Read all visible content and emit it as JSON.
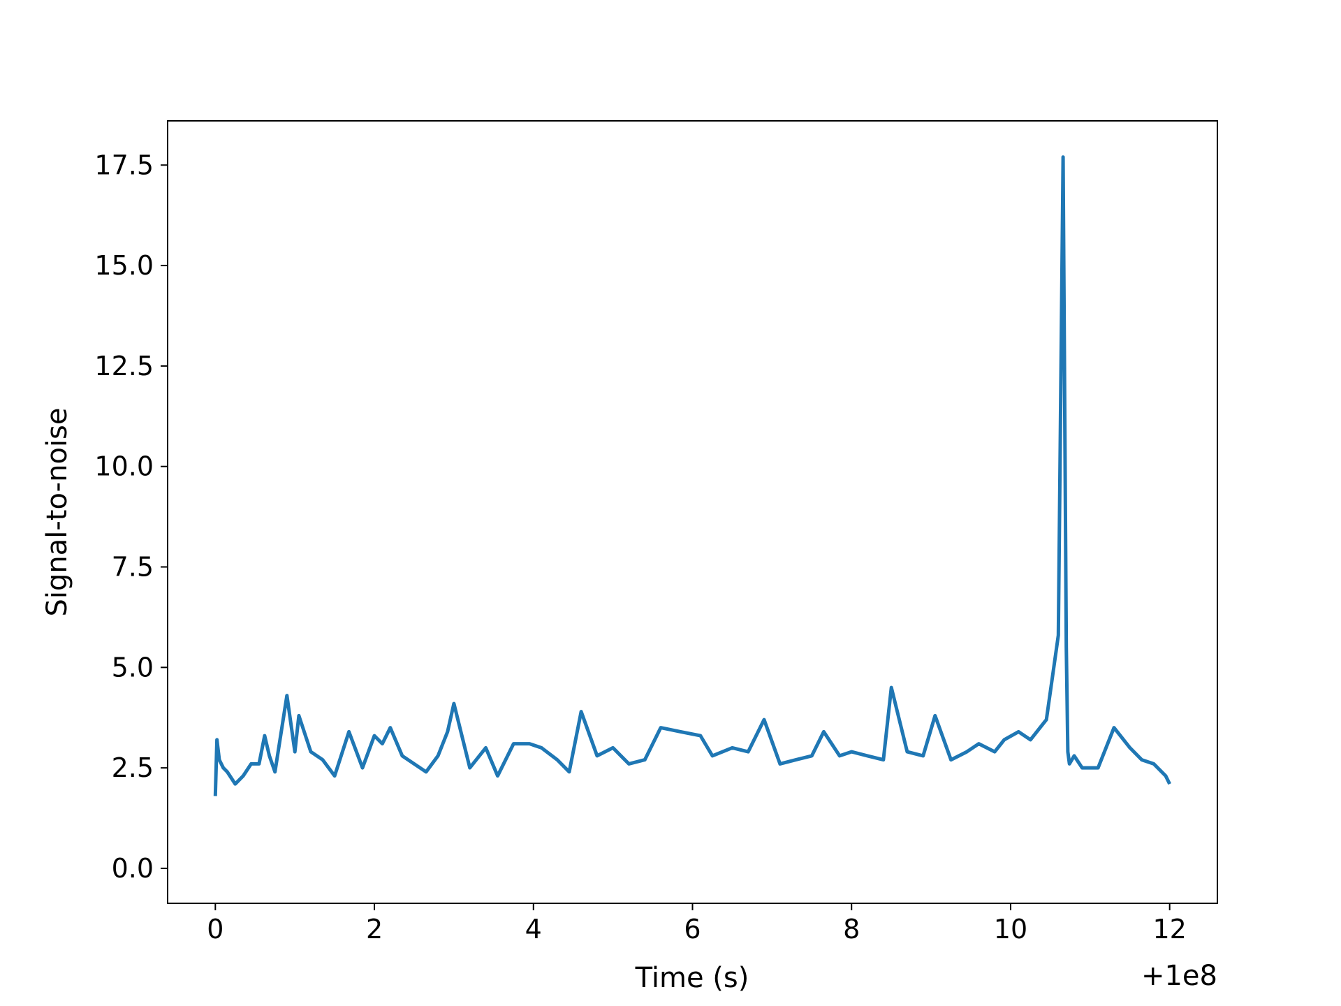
{
  "chart_data": {
    "type": "line",
    "title": "",
    "xlabel": "Time (s)",
    "ylabel": "Signal-to-noise",
    "x_offset_label": "+1e8",
    "xlim": [
      -0.6,
      12.6
    ],
    "ylim": [
      -0.87,
      18.6
    ],
    "xticks": [
      0,
      2,
      4,
      6,
      8,
      10,
      12
    ],
    "xtick_labels": [
      "0",
      "2",
      "4",
      "6",
      "8",
      "10",
      "12"
    ],
    "yticks": [
      0.0,
      2.5,
      5.0,
      7.5,
      10.0,
      12.5,
      15.0,
      17.5
    ],
    "ytick_labels": [
      "0.0",
      "2.5",
      "5.0",
      "7.5",
      "10.0",
      "12.5",
      "15.0",
      "17.5"
    ],
    "grid": false,
    "line_color": "#1f77b4",
    "series": [
      {
        "x": [
          0.0,
          0.02,
          0.05,
          0.1,
          0.15,
          0.25,
          0.35,
          0.45,
          0.55,
          0.62,
          0.68,
          0.75,
          0.9,
          1.0,
          1.05,
          1.2,
          1.35,
          1.5,
          1.68,
          1.85,
          2.0,
          2.1,
          2.2,
          2.35,
          2.5,
          2.65,
          2.8,
          2.92,
          3.0,
          3.2,
          3.4,
          3.55,
          3.75,
          3.95,
          4.1,
          4.3,
          4.45,
          4.6,
          4.8,
          5.0,
          5.2,
          5.4,
          5.6,
          5.85,
          6.1,
          6.25,
          6.5,
          6.7,
          6.9,
          7.1,
          7.3,
          7.5,
          7.65,
          7.85,
          8.0,
          8.2,
          8.4,
          8.5,
          8.7,
          8.9,
          9.05,
          9.25,
          9.45,
          9.6,
          9.8,
          9.92,
          10.1,
          10.25,
          10.45,
          10.6,
          10.66,
          10.7,
          10.72,
          10.74,
          10.8,
          10.9,
          11.1,
          11.3,
          11.5,
          11.65,
          11.8,
          11.95,
          12.0
        ],
        "y": [
          1.8,
          3.2,
          2.7,
          2.5,
          2.4,
          2.1,
          2.3,
          2.6,
          2.6,
          3.3,
          2.8,
          2.4,
          4.3,
          2.9,
          3.8,
          2.9,
          2.7,
          2.3,
          3.4,
          2.5,
          3.3,
          3.1,
          3.5,
          2.8,
          2.6,
          2.4,
          2.8,
          3.4,
          4.1,
          2.5,
          3.0,
          2.3,
          3.1,
          3.1,
          3.0,
          2.7,
          2.4,
          3.9,
          2.8,
          3.0,
          2.6,
          2.7,
          3.5,
          3.4,
          3.3,
          2.8,
          3.0,
          2.9,
          3.7,
          2.6,
          2.7,
          2.8,
          3.4,
          2.8,
          2.9,
          2.8,
          2.7,
          4.5,
          2.9,
          2.8,
          3.8,
          2.7,
          2.9,
          3.1,
          2.9,
          3.2,
          3.4,
          3.2,
          3.7,
          5.8,
          17.7,
          5.5,
          2.9,
          2.6,
          2.8,
          2.5,
          2.5,
          3.5,
          3.0,
          2.7,
          2.6,
          2.3,
          2.1
        ]
      }
    ]
  }
}
